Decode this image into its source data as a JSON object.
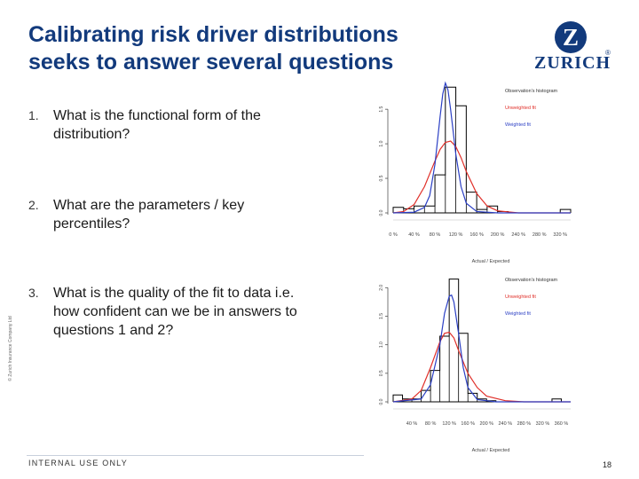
{
  "title": {
    "line1": "Calibrating risk driver distributions",
    "line2": "seeks to answer several questions"
  },
  "logo": {
    "mark": "Z",
    "word": "ZURICH",
    "reg": "®"
  },
  "colors": {
    "title": "#123a7c",
    "histogram": "#000000",
    "unweighted": "#e0302a",
    "weighted": "#2b3fc4"
  },
  "questions": [
    {
      "num": "1.",
      "text": "What is the functional form of the distribution?"
    },
    {
      "num": "2.",
      "text": "What are the parameters / key percentiles?"
    },
    {
      "num": "3.",
      "text": "What is the quality of the fit to data i.e. how confident can we be in answers to questions 1 and 2?"
    }
  ],
  "side_note": "© Zurich Insurance Company Ltd",
  "footer": {
    "label": "INTERNAL USE ONLY",
    "page": "18"
  },
  "chart_data": [
    {
      "type": "line",
      "xlabel": "Actual / Expected",
      "xlim": [
        0,
        340
      ],
      "ylim": [
        0,
        1.9
      ],
      "x_ticks": [
        0,
        40,
        80,
        120,
        160,
        200,
        240,
        280,
        320
      ],
      "x_tick_labels": [
        "0 %",
        "40 %",
        "80 %",
        "120 %",
        "160 %",
        "200 %",
        "240 %",
        "280 %",
        "320 %"
      ],
      "y_ticks": [
        0,
        0.5,
        1.0,
        1.5
      ],
      "y_tick_labels": [
        "0.0",
        "0.5",
        "1.0",
        "1.5"
      ],
      "legend": [
        "Observation's histogram",
        "Unweighted fit",
        "Weighted fit"
      ],
      "legend_position": "top-right",
      "histogram": {
        "name": "Observation's histogram",
        "edges": [
          0,
          20,
          40,
          60,
          80,
          100,
          120,
          140,
          160,
          180,
          200,
          220,
          240,
          260,
          280,
          300,
          320,
          340
        ],
        "values": [
          0.08,
          0.06,
          0.1,
          0.1,
          0.55,
          1.82,
          1.55,
          0.3,
          0.05,
          0.1,
          0.02,
          0.0,
          0.0,
          0.0,
          0.0,
          0.0,
          0.05
        ]
      },
      "series": [
        {
          "name": "Unweighted fit",
          "x": [
            0,
            20,
            40,
            60,
            80,
            90,
            100,
            110,
            120,
            130,
            140,
            160,
            180,
            200,
            240,
            280,
            340
          ],
          "y": [
            0.0,
            0.02,
            0.12,
            0.38,
            0.75,
            0.92,
            1.02,
            1.04,
            0.96,
            0.8,
            0.6,
            0.28,
            0.1,
            0.03,
            0.0,
            0.0,
            0.0
          ]
        },
        {
          "name": "Weighted fit",
          "x": [
            0,
            40,
            60,
            70,
            80,
            90,
            95,
            100,
            105,
            110,
            120,
            130,
            140,
            160,
            200,
            340
          ],
          "y": [
            0.0,
            0.01,
            0.08,
            0.25,
            0.7,
            1.4,
            1.72,
            1.88,
            1.78,
            1.5,
            0.85,
            0.38,
            0.14,
            0.02,
            0.0,
            0.0
          ]
        }
      ]
    },
    {
      "type": "line",
      "xlabel": "Actual / Expected",
      "xlim": [
        0,
        380
      ],
      "ylim": [
        0,
        2.3
      ],
      "x_ticks": [
        40,
        80,
        120,
        160,
        200,
        240,
        280,
        320,
        360
      ],
      "x_tick_labels": [
        "40 %",
        "80 %",
        "120 %",
        "160 %",
        "200 %",
        "240 %",
        "280 %",
        "320 %",
        "360 %"
      ],
      "y_ticks": [
        0,
        0.5,
        1.0,
        1.5,
        2.0
      ],
      "y_tick_labels": [
        "0.0",
        "0.5",
        "1.0",
        "1.5",
        "2.0"
      ],
      "legend": [
        "Observation's histogram",
        "Unweighted fit",
        "Weighted fit"
      ],
      "legend_position": "top-right",
      "histogram": {
        "name": "Observation's histogram",
        "edges": [
          0,
          20,
          40,
          60,
          80,
          100,
          120,
          140,
          160,
          180,
          200,
          220,
          240,
          260,
          280,
          300,
          320,
          340,
          360,
          380
        ],
        "values": [
          0.12,
          0.05,
          0.05,
          0.2,
          0.55,
          1.15,
          2.15,
          1.2,
          0.15,
          0.05,
          0.02,
          0.0,
          0.0,
          0.0,
          0.0,
          0.0,
          0.0,
          0.05,
          0.0
        ]
      },
      "series": [
        {
          "name": "Unweighted fit",
          "x": [
            0,
            40,
            60,
            80,
            100,
            110,
            120,
            130,
            140,
            160,
            180,
            200,
            240,
            280,
            380
          ],
          "y": [
            0.0,
            0.05,
            0.2,
            0.6,
            1.05,
            1.2,
            1.22,
            1.12,
            0.9,
            0.5,
            0.25,
            0.1,
            0.02,
            0.0,
            0.0
          ]
        },
        {
          "name": "Weighted fit",
          "x": [
            0,
            60,
            80,
            100,
            110,
            120,
            125,
            130,
            140,
            150,
            160,
            180,
            220,
            380
          ],
          "y": [
            0.0,
            0.05,
            0.3,
            1.0,
            1.55,
            1.85,
            1.87,
            1.75,
            1.2,
            0.6,
            0.25,
            0.04,
            0.0,
            0.0
          ]
        }
      ]
    }
  ]
}
